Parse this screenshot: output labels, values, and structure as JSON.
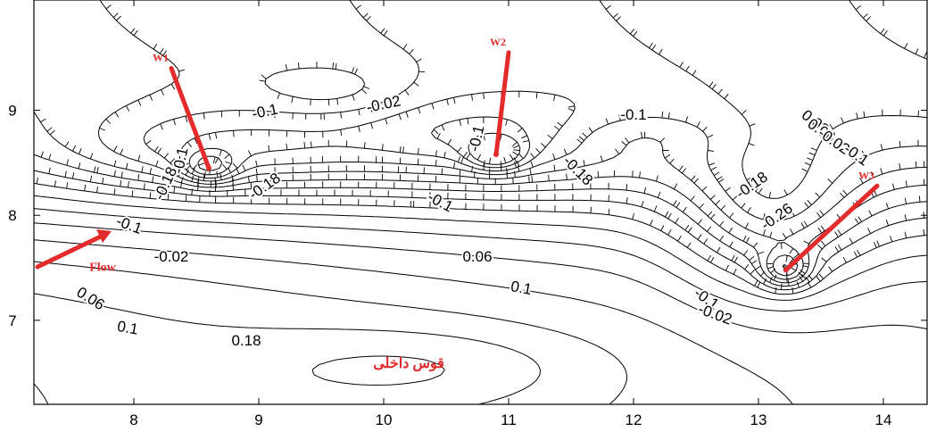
{
  "chart_data": {
    "type": "contour",
    "title": "",
    "xlabel": "",
    "ylabel": "",
    "xlim": [
      7.2,
      14.35
    ],
    "ylim": [
      6.2,
      10.05
    ],
    "x_ticks": [
      8,
      9,
      10,
      11,
      12,
      13,
      14
    ],
    "x_tick_labels": [
      "8",
      "9",
      "10",
      "11",
      "12",
      "13",
      "14"
    ],
    "y_ticks": [
      7,
      8,
      9
    ],
    "y_tick_labels": [
      "7",
      "8",
      "9"
    ],
    "grid": false,
    "contour_labels": [
      {
        "text": "-0.1",
        "x": 9.05,
        "y": 8.98,
        "angle": -12
      },
      {
        "text": "-0.02",
        "x": 10.0,
        "y": 9.05,
        "angle": -12
      },
      {
        "text": "-0.1",
        "x": 12.0,
        "y": 8.95,
        "angle": 0
      },
      {
        "text": "-0.1",
        "x": 8.38,
        "y": 8.52,
        "angle": -78
      },
      {
        "text": "-0.18",
        "x": 8.26,
        "y": 8.3,
        "angle": -65
      },
      {
        "text": "-0.18",
        "x": 9.05,
        "y": 8.27,
        "angle": -35
      },
      {
        "text": "-0.1",
        "x": 10.75,
        "y": 8.73,
        "angle": -78
      },
      {
        "text": "-0.18",
        "x": 11.55,
        "y": 8.42,
        "angle": 45
      },
      {
        "text": "-0.1",
        "x": 10.45,
        "y": 8.12,
        "angle": 28
      },
      {
        "text": "-0.1",
        "x": 7.96,
        "y": 7.9,
        "angle": 20
      },
      {
        "text": "-0.02",
        "x": 8.3,
        "y": 7.6,
        "angle": 0
      },
      {
        "text": "0.06",
        "x": 10.75,
        "y": 7.6,
        "angle": 0
      },
      {
        "text": "0.1",
        "x": 11.1,
        "y": 7.3,
        "angle": 10
      },
      {
        "text": "0.06",
        "x": 7.65,
        "y": 7.2,
        "angle": 32
      },
      {
        "text": "0.1",
        "x": 7.95,
        "y": 6.92,
        "angle": 10
      },
      {
        "text": "0.18",
        "x": 8.9,
        "y": 6.8,
        "angle": 0
      },
      {
        "text": "0.02",
        "x": 13.45,
        "y": 8.88,
        "angle": 38
      },
      {
        "text": "0.06",
        "x": 13.5,
        "y": 8.8,
        "angle": 35
      },
      {
        "text": "-0.02",
        "x": 13.6,
        "y": 8.7,
        "angle": 35
      },
      {
        "text": "-0.1",
        "x": 13.78,
        "y": 8.57,
        "angle": 35
      },
      {
        "text": "-0.18",
        "x": 12.95,
        "y": 8.28,
        "angle": -35
      },
      {
        "text": "-0.26",
        "x": 13.15,
        "y": 7.98,
        "angle": -35
      },
      {
        "text": "-0.1",
        "x": 12.58,
        "y": 7.2,
        "angle": 35
      },
      {
        "text": "-0.02",
        "x": 12.65,
        "y": 7.05,
        "angle": 20
      }
    ],
    "wells": [
      {
        "label": "W1",
        "x": 8.6,
        "y": 8.45,
        "line_from": [
          8.3,
          9.4
        ]
      },
      {
        "label": "W2",
        "x": 10.9,
        "y": 8.58,
        "line_from": [
          11.0,
          9.55
        ]
      },
      {
        "label": "W3",
        "x": 13.22,
        "y": 7.48,
        "line_from": [
          13.95,
          8.28
        ]
      }
    ],
    "annotations": [
      {
        "text": "Flow",
        "x": 7.75,
        "y": 7.47
      },
      {
        "text": "قوس داخلی",
        "x": 10.2,
        "y": 6.55
      }
    ],
    "colors": {
      "contours": "#000000",
      "annotations": "#e32b2b"
    }
  }
}
